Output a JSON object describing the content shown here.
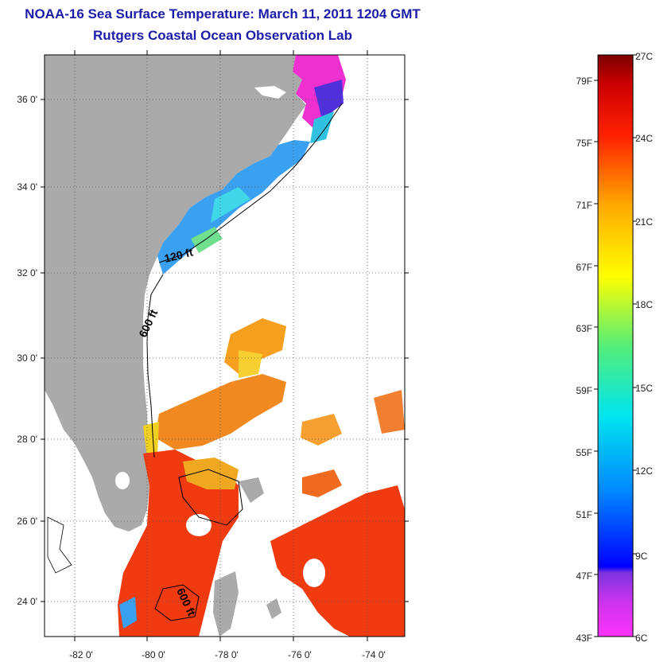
{
  "title": "NOAA-16 Sea Surface Temperature:  March 11, 2011 1204 GMT",
  "subtitle": "Rutgers Coastal Ocean Observation Lab",
  "map": {
    "lon_range": [
      -83,
      -73
    ],
    "lat_range": [
      23,
      37
    ],
    "lat_ticks": [
      {
        "value": 24,
        "label": "24 0'"
      },
      {
        "value": 26,
        "label": "26 0'"
      },
      {
        "value": 28,
        "label": "28 0'"
      },
      {
        "value": 30,
        "label": "30 0'"
      },
      {
        "value": 32,
        "label": "32 0'"
      },
      {
        "value": 34,
        "label": "34 0'"
      },
      {
        "value": 36,
        "label": "36 0'"
      }
    ],
    "lon_ticks": [
      {
        "value": -82,
        "label": "-82 0'"
      },
      {
        "value": -80,
        "label": "-80 0'"
      },
      {
        "value": -78,
        "label": "-78 0'"
      },
      {
        "value": -76,
        "label": "-76 0'"
      },
      {
        "value": -74,
        "label": "-74 0'"
      }
    ],
    "contour_labels": [
      "120 ft",
      "600 ft",
      "600 ft"
    ],
    "colors": {
      "land": "#aaaaaa",
      "grid": "#555555",
      "warm_water": "#f03a10",
      "gulf_stream": "#f7a020",
      "cool_shelf": "#3aa0f0",
      "cold_nearshore": "#f020c8"
    }
  },
  "colorbar": {
    "min_c": 6,
    "max_c": 27,
    "celsius_labels": [
      "27C",
      "24C",
      "21C",
      "18C",
      "15C",
      "12C",
      "9C",
      "6C"
    ],
    "fahrenheit_labels": [
      "79F",
      "75F",
      "71F",
      "67F",
      "63F",
      "59F",
      "55F",
      "51F",
      "47F",
      "43F"
    ]
  }
}
